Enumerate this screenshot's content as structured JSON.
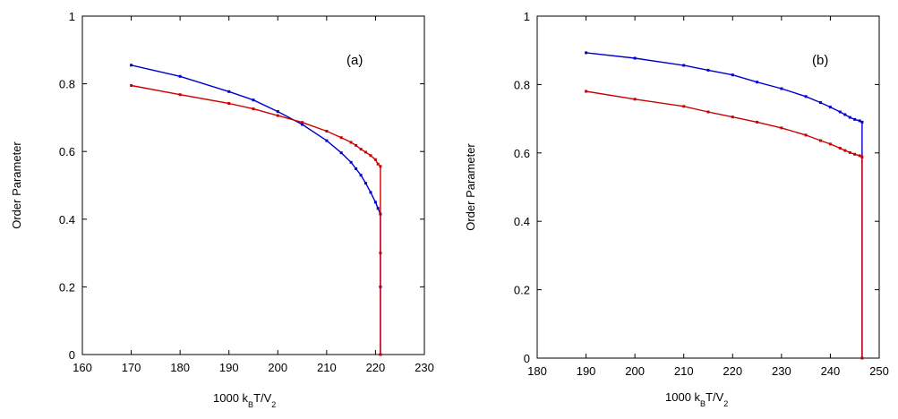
{
  "chart_data": [
    {
      "type": "line",
      "panel_label": "(a)",
      "xlabel": {
        "main": "1000 k",
        "sub1": "B",
        "mid": "T/V",
        "sub2": "2"
      },
      "ylabel": "Order Parameter",
      "xlim": [
        160,
        230
      ],
      "ylim": [
        0,
        1
      ],
      "xticks": [
        160,
        170,
        180,
        190,
        200,
        210,
        220,
        230
      ],
      "yticks": [
        0,
        0.2,
        0.4,
        0.6,
        0.8,
        1
      ],
      "xtick_labels": [
        "160",
        "170",
        "180",
        "190",
        "200",
        "210",
        "220",
        "230"
      ],
      "ytick_labels": [
        "0",
        "0.2",
        "0.4",
        "0.6",
        "0.8",
        "1"
      ],
      "grid": false,
      "series": [
        {
          "color": "#0000cc",
          "x": [
            170,
            180,
            190,
            195,
            200,
            205,
            210,
            213,
            215,
            216,
            217,
            218,
            219,
            220,
            220.5,
            221,
            221,
            221
          ],
          "y": [
            0.855,
            0.822,
            0.777,
            0.752,
            0.718,
            0.68,
            0.632,
            0.596,
            0.568,
            0.549,
            0.53,
            0.506,
            0.479,
            0.45,
            0.432,
            0.415,
            0.2,
            0.0
          ]
        },
        {
          "color": "#cc0000",
          "x": [
            170,
            180,
            190,
            195,
            200,
            205,
            210,
            213,
            215,
            216,
            217,
            218,
            219,
            220,
            220.5,
            221,
            221,
            221
          ],
          "y": [
            0.795,
            0.768,
            0.742,
            0.726,
            0.706,
            0.686,
            0.66,
            0.641,
            0.627,
            0.618,
            0.607,
            0.598,
            0.588,
            0.576,
            0.563,
            0.556,
            0.3,
            0.0
          ]
        }
      ]
    },
    {
      "type": "line",
      "panel_label": "(b)",
      "xlabel": {
        "main": "1000 k",
        "sub1": "B",
        "mid": "T/V",
        "sub2": "2"
      },
      "ylabel": "Order Parameter",
      "xlim": [
        180,
        250
      ],
      "ylim": [
        0,
        1
      ],
      "xticks": [
        180,
        190,
        200,
        210,
        220,
        230,
        240,
        250
      ],
      "yticks": [
        0,
        0.2,
        0.4,
        0.6,
        0.8,
        1
      ],
      "xtick_labels": [
        "180",
        "190",
        "200",
        "210",
        "220",
        "230",
        "240",
        "250"
      ],
      "ytick_labels": [
        "0",
        "0.2",
        "0.4",
        "0.6",
        "0.8",
        "1"
      ],
      "grid": false,
      "series": [
        {
          "color": "#0000cc",
          "x": [
            190,
            200,
            210,
            215,
            220,
            225,
            230,
            235,
            238,
            240,
            242,
            243,
            244,
            245,
            246,
            246.5,
            246.5
          ],
          "y": [
            0.893,
            0.877,
            0.856,
            0.842,
            0.828,
            0.807,
            0.788,
            0.765,
            0.747,
            0.734,
            0.72,
            0.712,
            0.704,
            0.698,
            0.694,
            0.69,
            0.0
          ]
        },
        {
          "color": "#cc0000",
          "x": [
            190,
            200,
            210,
            215,
            220,
            225,
            230,
            235,
            238,
            240,
            242,
            243,
            244,
            245,
            246,
            246.5,
            246.5
          ],
          "y": [
            0.78,
            0.757,
            0.736,
            0.72,
            0.705,
            0.69,
            0.673,
            0.652,
            0.636,
            0.626,
            0.614,
            0.607,
            0.601,
            0.596,
            0.592,
            0.588,
            0.0
          ]
        }
      ]
    }
  ]
}
